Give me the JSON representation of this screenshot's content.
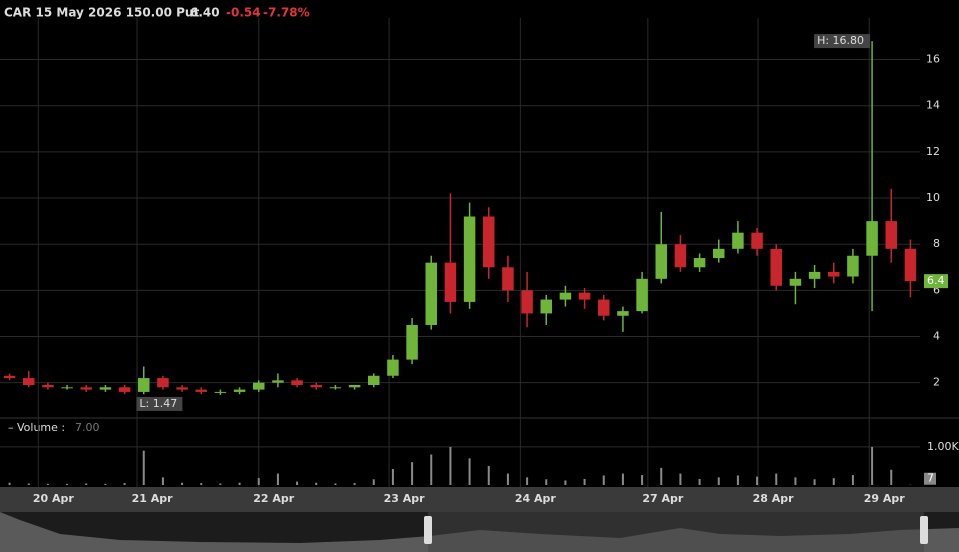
{
  "chart_data": {
    "type": "candlestick",
    "header": {
      "symbol": "CAR 15 May 2026 150.00 Put",
      "last": "6.40",
      "change": "-0.54",
      "change_pct": "-7.78%"
    },
    "high_label": "H: 16.80",
    "low_label": "L: 1.47",
    "last_price": 6.4,
    "up_color": "#6fb53a",
    "down_color": "#c8262c",
    "x": [
      1,
      3,
      5,
      7,
      9,
      11,
      13,
      15,
      17,
      19,
      21,
      23,
      25,
      27,
      29,
      31,
      33,
      35,
      37,
      39,
      41,
      43,
      45,
      47,
      49,
      51,
      53,
      55,
      57,
      59,
      61,
      63,
      65,
      67,
      69,
      71,
      73,
      75,
      77,
      79,
      81,
      83,
      85,
      87,
      89,
      91,
      93,
      95
    ],
    "open": [
      2.3,
      2.2,
      1.9,
      1.8,
      1.8,
      1.7,
      1.8,
      1.6,
      2.2,
      1.8,
      1.7,
      1.6,
      1.6,
      1.7,
      2.0,
      2.1,
      1.9,
      1.8,
      1.8,
      1.9,
      2.3,
      3.0,
      4.5,
      7.2,
      5.5,
      9.2,
      7.0,
      6.0,
      5.0,
      5.6,
      5.9,
      5.6,
      4.9,
      5.1,
      6.5,
      8.0,
      7.0,
      7.4,
      7.8,
      8.5,
      7.8,
      6.2,
      6.5,
      6.8,
      6.6,
      7.5,
      9.0,
      7.8
    ],
    "high": [
      2.4,
      2.5,
      2.0,
      1.9,
      1.9,
      1.9,
      1.9,
      2.7,
      2.3,
      1.9,
      1.8,
      1.7,
      1.8,
      2.1,
      2.4,
      2.2,
      2.0,
      1.9,
      1.9,
      2.4,
      3.2,
      4.8,
      7.5,
      10.2,
      9.8,
      9.6,
      7.5,
      6.8,
      5.8,
      6.2,
      6.1,
      5.8,
      5.3,
      6.8,
      9.4,
      8.4,
      7.6,
      8.2,
      9.0,
      8.7,
      8.0,
      6.8,
      7.1,
      7.2,
      7.8,
      16.8,
      10.4,
      8.2
    ],
    "low": [
      2.1,
      1.8,
      1.7,
      1.7,
      1.6,
      1.6,
      1.5,
      1.5,
      1.7,
      1.6,
      1.5,
      1.47,
      1.5,
      1.6,
      1.8,
      1.8,
      1.7,
      1.7,
      1.7,
      1.8,
      2.2,
      2.8,
      4.3,
      5.0,
      5.2,
      6.5,
      5.5,
      4.4,
      4.5,
      5.3,
      5.2,
      4.7,
      4.2,
      5.0,
      6.3,
      6.8,
      6.8,
      7.2,
      7.6,
      7.5,
      6.0,
      5.4,
      6.1,
      6.3,
      6.3,
      5.1,
      7.2,
      5.7
    ],
    "close": [
      2.2,
      1.9,
      1.8,
      1.8,
      1.7,
      1.8,
      1.6,
      2.2,
      1.8,
      1.7,
      1.6,
      1.6,
      1.7,
      2.0,
      2.1,
      1.9,
      1.8,
      1.8,
      1.9,
      2.3,
      3.0,
      4.5,
      7.2,
      5.5,
      9.2,
      7.0,
      6.0,
      5.0,
      5.6,
      5.9,
      5.6,
      4.9,
      5.1,
      6.5,
      8.0,
      7.0,
      7.4,
      7.8,
      8.5,
      7.8,
      6.2,
      6.5,
      6.8,
      6.6,
      7.5,
      9.0,
      7.8,
      6.4
    ],
    "xlim": [
      0,
      96
    ],
    "xticks": [
      {
        "value": 4,
        "label": "20 Apr"
      },
      {
        "value": 14.3,
        "label": "21 Apr"
      },
      {
        "value": 27,
        "label": "22 Apr"
      },
      {
        "value": 40.6,
        "label": "23 Apr"
      },
      {
        "value": 54.3,
        "label": "24 Apr"
      },
      {
        "value": 67.6,
        "label": "27 Apr"
      },
      {
        "value": 79.1,
        "label": "28 Apr"
      },
      {
        "value": 90.7,
        "label": "29 Apr"
      }
    ],
    "ylim": [
      0.6,
      17.8
    ],
    "yticks": [
      2,
      4,
      6,
      8,
      10,
      12,
      14,
      16
    ],
    "grid": true,
    "volume": {
      "label": "– Volume :",
      "current": "7.00",
      "last": 7,
      "color": "#8a8a8a",
      "values": [
        60,
        40,
        30,
        30,
        40,
        30,
        50,
        900,
        200,
        60,
        50,
        40,
        60,
        180,
        300,
        90,
        60,
        40,
        50,
        150,
        420,
        600,
        800,
        1000,
        700,
        500,
        300,
        200,
        150,
        120,
        160,
        250,
        300,
        260,
        450,
        300,
        160,
        200,
        250,
        220,
        300,
        200,
        150,
        180,
        260,
        1000,
        400,
        7
      ],
      "ylim": [
        0,
        1260
      ],
      "yticks": [
        {
          "value": 1000,
          "label": "1.00K"
        }
      ]
    }
  }
}
